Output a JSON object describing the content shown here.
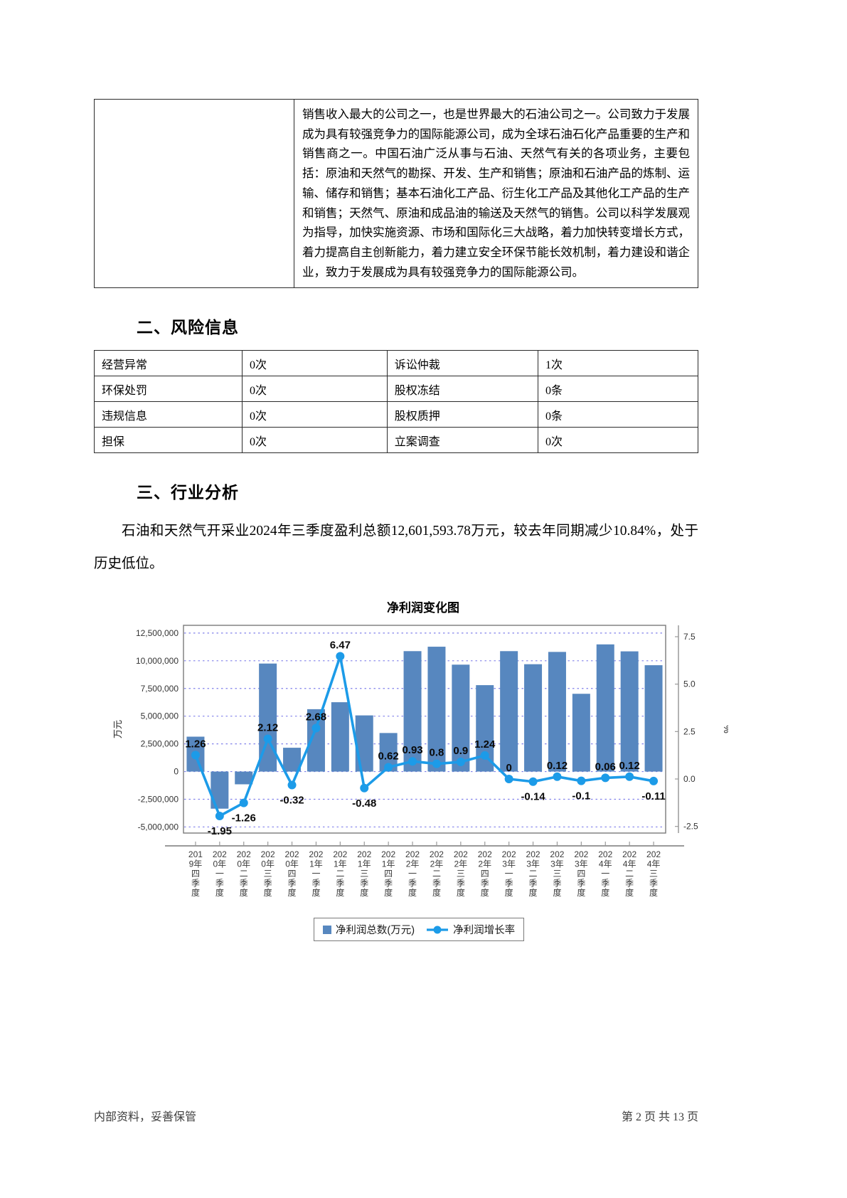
{
  "profile_table": {
    "description": "销售收入最大的公司之一，也是世界最大的石油公司之一。公司致力于发展成为具有较强竞争力的国际能源公司，成为全球石油石化产品重要的生产和销售商之一。中国石油广泛从事与石油、天然气有关的各项业务，主要包括：原油和天然气的勘探、开发、生产和销售；原油和石油产品的炼制、运输、储存和销售；基本石油化工产品、衍生化工产品及其他化工产品的生产和销售；天然气、原油和成品油的输送及天然气的销售。公司以科学发展观为指导，加快实施资源、市场和国际化三大战略，着力加快转变增长方式，着力提高自主创新能力，着力建立安全环保节能长效机制，着力建设和谐企业，致力于发展成为具有较强竞争力的国际能源公司。"
  },
  "sections": {
    "risk": {
      "heading": "二、风险信息"
    },
    "industry": {
      "heading": "三、行业分析",
      "paragraph": "石油和天然气开采业2024年三季度盈利总额12,601,593.78万元，较去年同期减少10.84%，处于历史低位。"
    }
  },
  "risk_table": {
    "rows": [
      {
        "cells": [
          "经营异常",
          "0次",
          "诉讼仲裁",
          "1次"
        ]
      },
      {
        "cells": [
          "环保处罚",
          "0次",
          "股权冻结",
          "0条"
        ]
      },
      {
        "cells": [
          "违规信息",
          "0次",
          "股权质押",
          "0条"
        ]
      },
      {
        "cells": [
          "担保",
          "0次",
          "立案调查",
          "0次"
        ]
      }
    ]
  },
  "chart_data": {
    "type": "bar+line",
    "title": "净利润变化图",
    "categories": [
      "2019年四季度",
      "2020年一季度",
      "2020年二季度",
      "2020年三季度",
      "2020年四季度",
      "2021年一季度",
      "2021年二季度",
      "2021年三季度",
      "2021年四季度",
      "2022年一季度",
      "2022年二季度",
      "2022年三季度",
      "2022年四季度",
      "2023年一季度",
      "2023年二季度",
      "2023年三季度",
      "2023年四季度",
      "2024年一季度",
      "2024年二季度",
      "2024年三季度"
    ],
    "series": [
      {
        "name": "净利润总数(万元)",
        "kind": "bar",
        "axis": "left",
        "color": "#5787BF",
        "values": [
          3150000,
          -3350000,
          -1150000,
          9750000,
          2150000,
          5630000,
          6260000,
          5070000,
          3480000,
          10870000,
          11270000,
          9650000,
          7800000,
          10870000,
          9690000,
          10800000,
          7020000,
          11480000,
          10850000,
          9600000
        ]
      },
      {
        "name": "净利润增长率",
        "kind": "line",
        "axis": "right",
        "color": "#1C9BE8",
        "values": [
          1.26,
          -1.95,
          -1.26,
          2.12,
          -0.32,
          2.68,
          6.47,
          -0.48,
          0.62,
          0.93,
          0.8,
          0.9,
          1.24,
          0,
          -0.14,
          0.12,
          -0.1,
          0.06,
          0.12,
          -0.11
        ],
        "labels": [
          "1.26",
          "-1.95",
          "-1.26",
          "2.12",
          "-0.32",
          "2.68",
          "6.47",
          "-0.48",
          "0.62",
          "0.93",
          "0.8",
          "0.9",
          "1.24",
          "0",
          "-0.14",
          "0.12",
          "-0.1",
          "0.06",
          "0.12",
          "-0.11"
        ]
      }
    ],
    "left_axis": {
      "title": "万元",
      "ticks": [
        12500000,
        10000000,
        7500000,
        5000000,
        2500000,
        0,
        -2500000,
        -5000000
      ],
      "range": [
        -5550000,
        13200000
      ]
    },
    "right_axis": {
      "title": "%",
      "ticks": [
        7.5,
        5,
        2.5,
        0,
        -2.5
      ],
      "range": [
        -2.85,
        8.1
      ]
    },
    "grid": true,
    "legend_position": "bottom",
    "grid_color": "#8181EA",
    "axis_color": "#9A9A9A"
  },
  "footer": {
    "left": "内部资料，妥善保管",
    "right": "第 2 页  共 13 页"
  }
}
